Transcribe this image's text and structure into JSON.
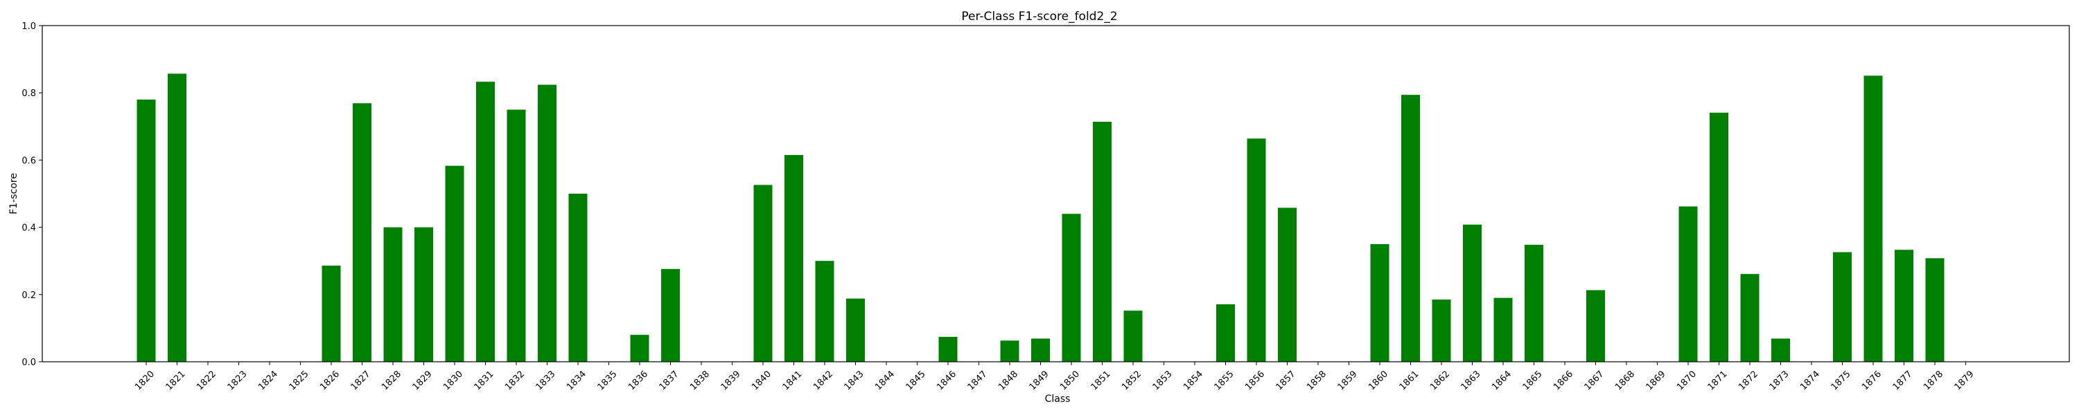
{
  "chart_data": {
    "type": "bar",
    "title": "Per-Class F1-score_fold2_2",
    "xlabel": "Class",
    "ylabel": "F1-score",
    "ylim": [
      0,
      1.0
    ],
    "yticks": [
      "0.0",
      "0.2",
      "0.4",
      "0.6",
      "0.8",
      "1.0"
    ],
    "grid": false,
    "bar_color": "#008000",
    "categories": [
      "1820",
      "1821",
      "1822",
      "1823",
      "1824",
      "1825",
      "1826",
      "1827",
      "1828",
      "1829",
      "1830",
      "1831",
      "1832",
      "1833",
      "1834",
      "1835",
      "1836",
      "1837",
      "1838",
      "1839",
      "1840",
      "1841",
      "1842",
      "1843",
      "1844",
      "1845",
      "1846",
      "1847",
      "1848",
      "1849",
      "1850",
      "1851",
      "1852",
      "1853",
      "1854",
      "1855",
      "1856",
      "1857",
      "1858",
      "1859",
      "1860",
      "1861",
      "1862",
      "1863",
      "1864",
      "1865",
      "1866",
      "1867",
      "1868",
      "1869",
      "1870",
      "1871",
      "1872",
      "1873",
      "1874",
      "1875",
      "1876",
      "1877",
      "1878",
      "1879"
    ],
    "values": [
      0.78,
      0.857,
      0,
      0,
      0,
      0,
      0.286,
      0.769,
      0.4,
      0.4,
      0.583,
      0.833,
      0.75,
      0.824,
      0.5,
      0,
      0.08,
      0.276,
      0,
      0,
      0.526,
      0.615,
      0.3,
      0.188,
      0,
      0,
      0.074,
      0,
      0.063,
      0.069,
      0.44,
      0.714,
      0.152,
      0,
      0,
      0.171,
      0.664,
      0.458,
      0,
      0,
      0.35,
      0.794,
      0.185,
      0.408,
      0.19,
      0.348,
      0,
      0.213,
      0,
      0,
      0.462,
      0.741,
      0.261,
      0.069,
      0,
      0.326,
      0.851,
      0.333,
      0.308,
      0
    ]
  }
}
